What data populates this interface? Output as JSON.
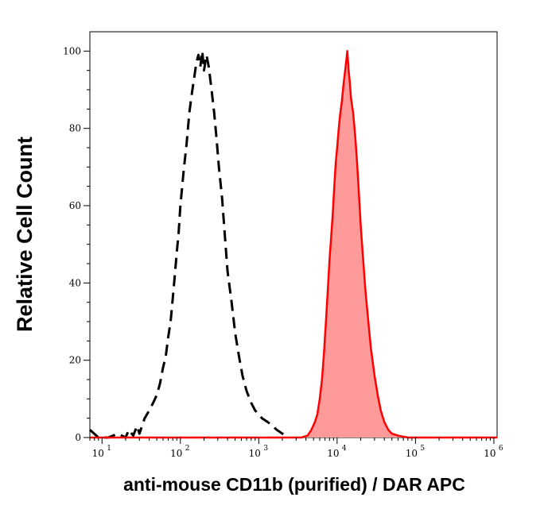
{
  "chart_data": {
    "type": "area",
    "title": "",
    "xlabel": "anti-mouse CD11b (purified) / DAR APC",
    "ylabel": "Relative Cell Count",
    "xscale": "log",
    "xlim": [
      7,
      1100000
    ],
    "ylim": [
      0,
      105
    ],
    "x_ticks": [
      {
        "base": "10",
        "exp": "1",
        "value": 10
      },
      {
        "base": "10",
        "exp": "2",
        "value": 100
      },
      {
        "base": "10",
        "exp": "3",
        "value": 1000
      },
      {
        "base": "10",
        "exp": "4",
        "value": 10000
      },
      {
        "base": "10",
        "exp": "5",
        "value": 100000
      },
      {
        "base": "10",
        "exp": "6",
        "value": 1000000
      }
    ],
    "y_ticks": [
      0,
      20,
      40,
      60,
      80,
      100
    ],
    "grid": false,
    "legend": "none",
    "series": [
      {
        "style": "dashed-line",
        "color": "#000000",
        "points": [
          [
            7,
            2
          ],
          [
            9,
            0
          ],
          [
            12,
            0
          ],
          [
            16,
            1
          ],
          [
            20,
            0
          ],
          [
            22,
            2
          ],
          [
            25,
            0.5
          ],
          [
            28,
            3
          ],
          [
            30,
            1
          ],
          [
            35,
            5
          ],
          [
            40,
            7
          ],
          [
            45,
            9
          ],
          [
            50,
            11
          ],
          [
            55,
            14
          ],
          [
            60,
            18
          ],
          [
            65,
            21
          ],
          [
            70,
            26
          ],
          [
            75,
            30
          ],
          [
            80,
            36
          ],
          [
            85,
            42
          ],
          [
            90,
            48
          ],
          [
            95,
            53
          ],
          [
            100,
            60
          ],
          [
            110,
            69
          ],
          [
            120,
            76
          ],
          [
            130,
            84
          ],
          [
            140,
            89
          ],
          [
            150,
            93
          ],
          [
            160,
            97
          ],
          [
            170,
            99
          ],
          [
            180,
            96
          ],
          [
            190,
            100
          ],
          [
            200,
            95
          ],
          [
            215,
            99
          ],
          [
            230,
            96
          ],
          [
            250,
            90
          ],
          [
            270,
            84
          ],
          [
            290,
            77
          ],
          [
            310,
            70
          ],
          [
            340,
            62
          ],
          [
            370,
            52
          ],
          [
            400,
            43
          ],
          [
            450,
            35
          ],
          [
            500,
            27
          ],
          [
            560,
            21
          ],
          [
            620,
            16
          ],
          [
            700,
            12
          ],
          [
            800,
            9
          ],
          [
            900,
            7
          ],
          [
            1000,
            6
          ],
          [
            1100,
            5
          ],
          [
            1300,
            4
          ],
          [
            1500,
            3
          ],
          [
            1700,
            2
          ],
          [
            2000,
            1
          ],
          [
            2200,
            0.5
          ]
        ]
      },
      {
        "style": "filled-area",
        "color": "#ff0000",
        "fill": "#ff9a9a",
        "points": [
          [
            7,
            0
          ],
          [
            3500,
            0
          ],
          [
            4200,
            0.5
          ],
          [
            4700,
            2
          ],
          [
            5200,
            4
          ],
          [
            5600,
            6
          ],
          [
            6000,
            10
          ],
          [
            6400,
            15
          ],
          [
            6800,
            22
          ],
          [
            7200,
            30
          ],
          [
            7600,
            38
          ],
          [
            8000,
            46
          ],
          [
            8400,
            52
          ],
          [
            8800,
            58
          ],
          [
            9200,
            65
          ],
          [
            9600,
            71
          ],
          [
            10000,
            75
          ],
          [
            10500,
            80
          ],
          [
            11000,
            84
          ],
          [
            11500,
            87
          ],
          [
            12000,
            91
          ],
          [
            12500,
            94
          ],
          [
            13000,
            97
          ],
          [
            13500,
            100
          ],
          [
            14000,
            95
          ],
          [
            14500,
            92
          ],
          [
            15000,
            88
          ],
          [
            16000,
            84
          ],
          [
            17000,
            78
          ],
          [
            18000,
            71
          ],
          [
            19000,
            63
          ],
          [
            20000,
            55
          ],
          [
            21500,
            46
          ],
          [
            23000,
            38
          ],
          [
            25000,
            30
          ],
          [
            27000,
            23
          ],
          [
            30000,
            16
          ],
          [
            33000,
            11
          ],
          [
            36000,
            7
          ],
          [
            40000,
            4
          ],
          [
            45000,
            2
          ],
          [
            50000,
            1
          ],
          [
            60000,
            0.5
          ],
          [
            80000,
            0
          ],
          [
            1100000,
            0
          ]
        ]
      }
    ]
  }
}
